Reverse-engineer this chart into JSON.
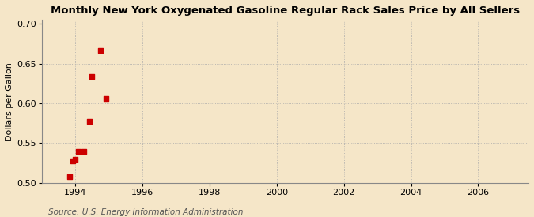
{
  "title": "Monthly New York Oxygenated Gasoline Regular Rack Sales Price by All Sellers",
  "ylabel": "Dollars per Gallon",
  "source": "Source: U.S. Energy Information Administration",
  "background_color": "#f5e6c8",
  "plot_bg_color": "#f5e6c8",
  "xlim": [
    1993.0,
    2007.5
  ],
  "ylim": [
    0.5,
    0.705
  ],
  "xticks": [
    1994,
    1996,
    1998,
    2000,
    2002,
    2004,
    2006
  ],
  "yticks": [
    0.5,
    0.55,
    0.6,
    0.65,
    0.7
  ],
  "data_x": [
    1993.83,
    1993.92,
    1994.0,
    1994.08,
    1994.25,
    1994.42,
    1994.5,
    1994.75,
    1994.92
  ],
  "data_y": [
    0.508,
    0.528,
    0.53,
    0.54,
    0.54,
    0.577,
    0.634,
    0.667,
    0.606
  ],
  "marker_color": "#cc0000",
  "marker_size": 16,
  "grid_color": "#aaaaaa",
  "grid_linestyle": ":",
  "title_fontsize": 9.5,
  "label_fontsize": 8,
  "tick_fontsize": 8,
  "source_fontsize": 7.5
}
